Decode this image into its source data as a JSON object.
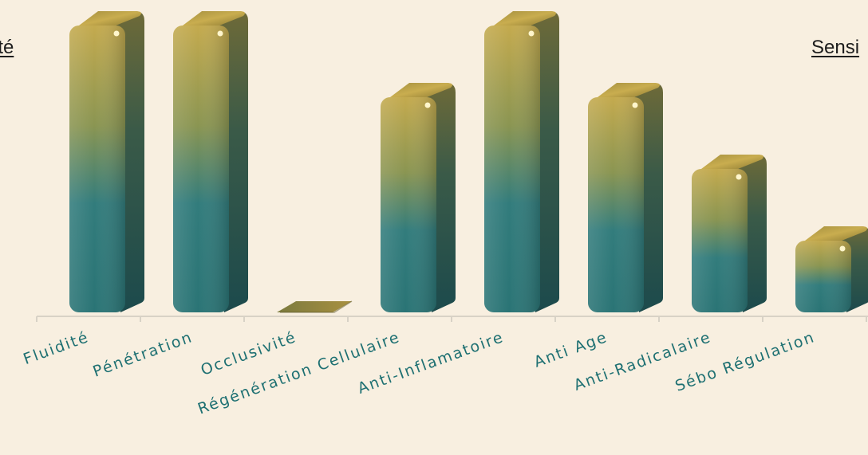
{
  "chart_data": {
    "type": "bar",
    "categories": [
      "Fluidité",
      "Pénétration",
      "Occlusivité",
      "Régénération Cellulaire",
      "Anti-Inflamatoire",
      "Anti Age",
      "Anti-Radicalaire",
      "Sébo Régulation"
    ],
    "values": [
      4,
      4,
      0,
      3,
      4,
      3,
      2,
      1
    ],
    "ylim": [
      0,
      4
    ],
    "grid": false,
    "title": "",
    "xlabel": "",
    "ylabel": ""
  },
  "edge_labels": {
    "left": "cité",
    "right": "Sensi"
  },
  "colors": {
    "background": "#f8efe0",
    "bar_top": "#c2a84c",
    "bar_bottom": "#2d7a7c",
    "bar_side": "#1f4d4f",
    "axis": "#d8d2c6",
    "tick_text": "#1e7072"
  }
}
